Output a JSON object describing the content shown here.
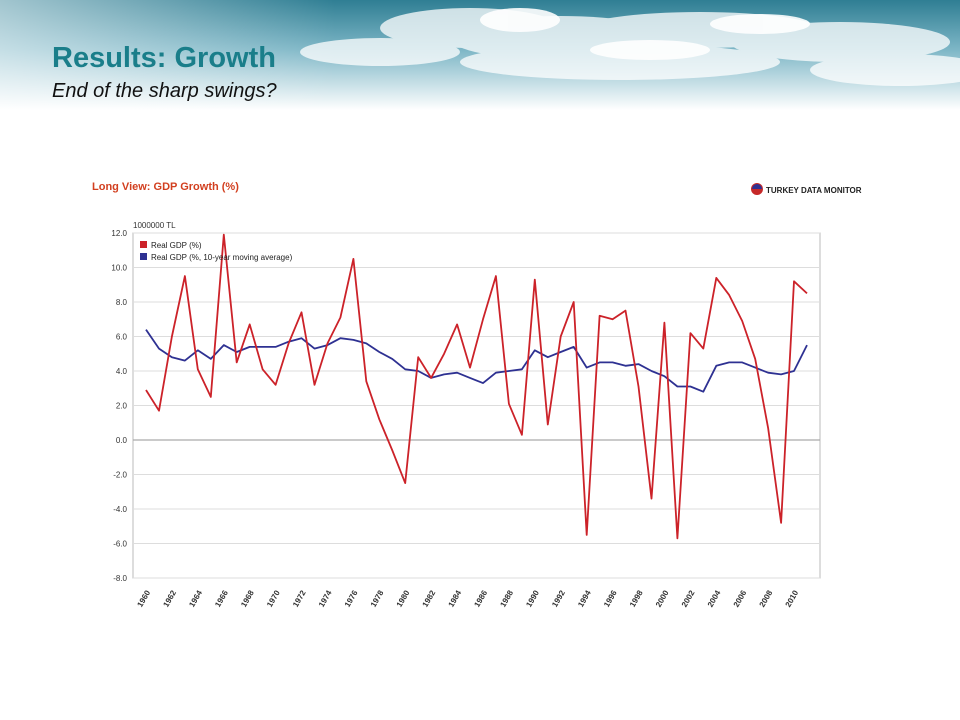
{
  "slide": {
    "title": "Results: Growth",
    "subtitle": "End of the sharp swings?"
  },
  "colors": {
    "title": "#1a7e8a",
    "series_real": "#cc2229",
    "series_avg": "#2e3192",
    "chart_title": "#d23f1f"
  },
  "chart_data": {
    "type": "line",
    "title": "Long View: GDP Growth (%)",
    "brand": "TURKEY DATA MONITOR",
    "unit_label": "1000000 TL",
    "xlabel": "",
    "ylabel": "",
    "ylim": [
      -8,
      12
    ],
    "yticks": [
      "12.0",
      "10.0",
      "8.0",
      "6.0",
      "4.0",
      "2.0",
      "0.0",
      "-2.0",
      "-4.0",
      "-6.0",
      "-8.0"
    ],
    "xticks": [
      "1960",
      "1962",
      "1964",
      "1966",
      "1968",
      "1970",
      "1972",
      "1974",
      "1976",
      "1978",
      "1980",
      "1982",
      "1984",
      "1986",
      "1988",
      "1990",
      "1992",
      "1994",
      "1996",
      "1998",
      "2000",
      "2002",
      "2004",
      "2006",
      "2008",
      "2010"
    ],
    "legend_position": "top-left",
    "grid": true,
    "x": [
      1960,
      1961,
      1962,
      1963,
      1964,
      1965,
      1966,
      1967,
      1968,
      1969,
      1970,
      1971,
      1972,
      1973,
      1974,
      1975,
      1976,
      1977,
      1978,
      1979,
      1980,
      1981,
      1982,
      1983,
      1984,
      1985,
      1986,
      1987,
      1988,
      1989,
      1990,
      1991,
      1992,
      1993,
      1994,
      1995,
      1996,
      1997,
      1998,
      1999,
      2000,
      2001,
      2002,
      2003,
      2004,
      2005,
      2006,
      2007,
      2008,
      2009,
      2010,
      2011
    ],
    "series": [
      {
        "name": "Real GDP (%)",
        "color": "#cc2229",
        "values": [
          2.9,
          1.7,
          6.0,
          9.5,
          4.1,
          2.5,
          11.9,
          4.5,
          6.7,
          4.1,
          3.2,
          5.6,
          7.4,
          3.2,
          5.6,
          7.1,
          10.5,
          3.4,
          1.2,
          -0.6,
          -2.5,
          4.8,
          3.6,
          5.0,
          6.7,
          4.2,
          7.0,
          9.5,
          2.1,
          0.3,
          9.3,
          0.9,
          6.0,
          8.0,
          -5.5,
          7.2,
          7.0,
          7.5,
          3.1,
          -3.4,
          6.8,
          -5.7,
          6.2,
          5.3,
          9.4,
          8.4,
          6.9,
          4.7,
          0.7,
          -4.8,
          9.2,
          8.5
        ]
      },
      {
        "name": "Real GDP (%, 10-year moving average)",
        "color": "#2e3192",
        "values": [
          6.4,
          5.3,
          4.8,
          4.6,
          5.2,
          4.7,
          5.5,
          5.1,
          5.4,
          5.4,
          5.4,
          5.7,
          5.9,
          5.3,
          5.5,
          5.9,
          5.8,
          5.6,
          5.1,
          4.7,
          4.1,
          4.0,
          3.6,
          3.8,
          3.9,
          3.6,
          3.3,
          3.9,
          4.0,
          4.1,
          5.2,
          4.8,
          5.1,
          5.4,
          4.2,
          4.5,
          4.5,
          4.3,
          4.4,
          4.0,
          3.7,
          3.1,
          3.1,
          2.8,
          4.3,
          4.5,
          4.5,
          4.2,
          3.9,
          3.8,
          4.0,
          5.5
        ]
      }
    ]
  }
}
